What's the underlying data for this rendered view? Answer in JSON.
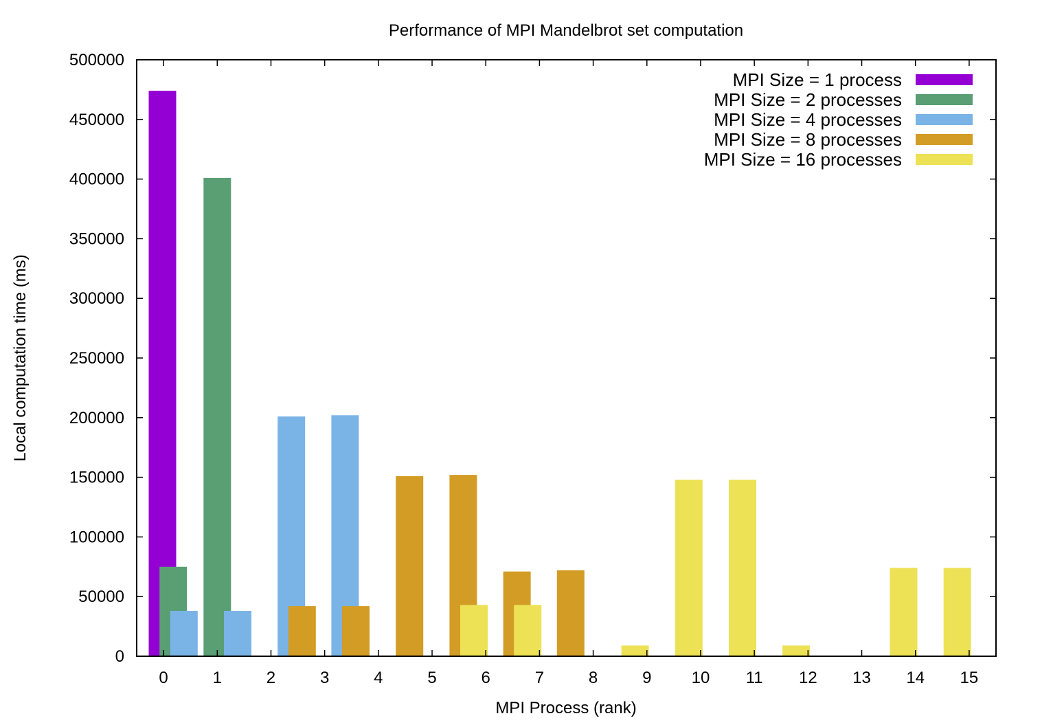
{
  "chart_data": {
    "type": "bar",
    "title": "Performance of MPI Mandelbrot set computation",
    "xlabel": "MPI Process (rank)",
    "ylabel": "Local computation time (ms)",
    "xlim": [
      -0.5,
      15.5
    ],
    "ylim": [
      0,
      500000
    ],
    "yticks": [
      0,
      50000,
      100000,
      150000,
      200000,
      250000,
      300000,
      350000,
      400000,
      450000,
      500000
    ],
    "xticks": [
      0,
      1,
      2,
      3,
      4,
      5,
      6,
      7,
      8,
      9,
      10,
      11,
      12,
      13,
      14,
      15
    ],
    "legend_position": "top-right",
    "grid": false,
    "series": [
      {
        "name": "MPI Size = 1 process",
        "color": "#9400d3",
        "points": [
          {
            "x": -0.02,
            "y": 474000
          }
        ]
      },
      {
        "name": "MPI Size = 2 processes",
        "color": "#5a9e74",
        "points": [
          {
            "x": 0.18,
            "y": 75000
          },
          {
            "x": 1.0,
            "y": 401000
          }
        ]
      },
      {
        "name": "MPI Size = 4 processes",
        "color": "#7ab4e6",
        "points": [
          {
            "x": 0.38,
            "y": 38000
          },
          {
            "x": 1.38,
            "y": 38000
          },
          {
            "x": 2.38,
            "y": 201000
          },
          {
            "x": 3.38,
            "y": 202000
          }
        ]
      },
      {
        "name": "MPI Size = 8 processes",
        "color": "#d39c25",
        "points": [
          {
            "x": 2.58,
            "y": 42000
          },
          {
            "x": 3.58,
            "y": 42000
          },
          {
            "x": 4.58,
            "y": 151000
          },
          {
            "x": 5.58,
            "y": 152000
          },
          {
            "x": 6.58,
            "y": 71000
          },
          {
            "x": 7.58,
            "y": 72000
          }
        ]
      },
      {
        "name": "MPI Size = 16 processes",
        "color": "#ede256",
        "points": [
          {
            "x": 5.78,
            "y": 43000
          },
          {
            "x": 6.78,
            "y": 43000
          },
          {
            "x": 8.78,
            "y": 9000
          },
          {
            "x": 9.78,
            "y": 148000
          },
          {
            "x": 10.78,
            "y": 148000
          },
          {
            "x": 11.78,
            "y": 9000
          },
          {
            "x": 13.78,
            "y": 74000
          },
          {
            "x": 14.78,
            "y": 74000
          }
        ]
      }
    ]
  }
}
